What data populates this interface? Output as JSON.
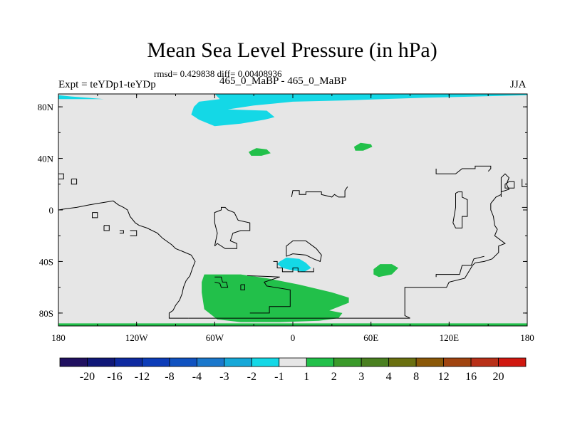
{
  "chart_data": {
    "type": "filled-contour map",
    "title": "Mean Sea Level Pressure (in hPa)",
    "stats_line": "rmsd= 0.429838 diff= 0.00408936",
    "left_label": "Expt = teYDp1-teYDp",
    "center_label": "465_0_MaBP - 465_0_MaBP",
    "right_label": "JJA",
    "x_axis": {
      "range": [
        -180,
        180
      ],
      "ticks": [
        {
          "value": -180,
          "label": "180"
        },
        {
          "value": -120,
          "label": "120W"
        },
        {
          "value": -60,
          "label": "60W"
        },
        {
          "value": 0,
          "label": "0"
        },
        {
          "value": 60,
          "label": "60E"
        },
        {
          "value": 120,
          "label": "120E"
        },
        {
          "value": 180,
          "label": "180"
        }
      ]
    },
    "y_axis": {
      "range": [
        -90,
        90
      ],
      "ticks": [
        {
          "value": 80,
          "label": "80N"
        },
        {
          "value": 40,
          "label": "40N"
        },
        {
          "value": 0,
          "label": "0"
        },
        {
          "value": -40,
          "label": "40S"
        },
        {
          "value": -80,
          "label": "80S"
        }
      ]
    },
    "colorbar": {
      "labels": [
        "-20",
        "-16",
        "-12",
        "-8",
        "-4",
        "-3",
        "-2",
        "-1",
        "1",
        "2",
        "3",
        "4",
        "8",
        "12",
        "16",
        "20"
      ],
      "colors": [
        "#201060",
        "#101878",
        "#0e2aa0",
        "#0c3cb8",
        "#1052c0",
        "#1a78cc",
        "#16a8d8",
        "#14d8e6",
        "#e6e6e6",
        "#22c04a",
        "#3a9a2a",
        "#4a8020",
        "#6a7010",
        "#8a5808",
        "#a04410",
        "#b83018",
        "#d01810"
      ]
    },
    "regions": [
      {
        "fill": "#14d8e6",
        "points": [
          [
            -180,
            90
          ],
          [
            -60,
            90
          ],
          [
            -56,
            86
          ],
          [
            -72,
            84
          ],
          [
            -76,
            80
          ],
          [
            -78,
            74
          ],
          [
            -72,
            70
          ],
          [
            -60,
            65
          ],
          [
            -40,
            67
          ],
          [
            -22,
            70
          ],
          [
            -14,
            72
          ],
          [
            -20,
            77
          ],
          [
            -50,
            78
          ],
          [
            -30,
            81
          ],
          [
            0,
            84
          ],
          [
            40,
            85
          ],
          [
            100,
            87
          ],
          [
            140,
            88
          ],
          [
            180,
            89
          ],
          [
            180,
            90
          ]
        ]
      },
      {
        "fill": "#14d8e6",
        "points": [
          [
            -180,
            86
          ],
          [
            -145,
            86
          ],
          [
            -170,
            88
          ],
          [
            -180,
            89
          ]
        ]
      },
      {
        "fill": "#22c04a",
        "points": [
          [
            -34,
            45
          ],
          [
            -28,
            48
          ],
          [
            -20,
            47
          ],
          [
            -17,
            44
          ],
          [
            -24,
            42
          ],
          [
            -32,
            42
          ]
        ]
      },
      {
        "fill": "#22c04a",
        "points": [
          [
            47,
            49
          ],
          [
            52,
            52
          ],
          [
            60,
            51
          ],
          [
            61,
            49
          ],
          [
            54,
            46
          ],
          [
            48,
            46
          ]
        ]
      },
      {
        "fill": "#14d8e6",
        "points": [
          [
            -10,
            -40
          ],
          [
            -5,
            -37
          ],
          [
            5,
            -38
          ],
          [
            10,
            -41
          ],
          [
            14,
            -45
          ],
          [
            9,
            -48
          ],
          [
            0,
            -47
          ],
          [
            -8,
            -45
          ],
          [
            -12,
            -42
          ]
        ]
      },
      {
        "fill": "#22c04a",
        "points": [
          [
            62,
            -46
          ],
          [
            67,
            -42
          ],
          [
            76,
            -42
          ],
          [
            81,
            -45
          ],
          [
            76,
            -50
          ],
          [
            66,
            -52
          ],
          [
            62,
            -50
          ]
        ]
      },
      {
        "fill": "#22c04a",
        "points": [
          [
            -68,
            -50
          ],
          [
            -40,
            -50
          ],
          [
            -20,
            -53
          ],
          [
            5,
            -58
          ],
          [
            30,
            -64
          ],
          [
            43,
            -68
          ],
          [
            43,
            -72
          ],
          [
            28,
            -78
          ],
          [
            38,
            -80
          ],
          [
            35,
            -84
          ],
          [
            20,
            -86
          ],
          [
            -10,
            -87
          ],
          [
            -40,
            -87
          ],
          [
            -58,
            -85
          ],
          [
            -68,
            -77
          ],
          [
            -70,
            -64
          ],
          [
            -70,
            -56
          ]
        ]
      },
      {
        "fill": "#22c04a",
        "points": [
          [
            -180,
            -88
          ],
          [
            180,
            -88
          ],
          [
            180,
            -90
          ],
          [
            -180,
            -90
          ]
        ]
      }
    ],
    "coastlines": [
      [
        [
          -80,
          -84
        ],
        [
          -95,
          -84
        ],
        [
          -95,
          -80
        ],
        [
          -92,
          -78
        ],
        [
          -90,
          -74
        ],
        [
          -87,
          -70
        ],
        [
          -85,
          -65
        ],
        [
          -84,
          -60
        ],
        [
          -82,
          -55
        ],
        [
          -79,
          -51
        ],
        [
          -77,
          -45
        ],
        [
          -75,
          -40
        ],
        [
          -78,
          -35
        ],
        [
          -85,
          -32
        ],
        [
          -90,
          -30
        ],
        [
          -93,
          -27
        ],
        [
          -100,
          -22
        ],
        [
          -104,
          -18
        ],
        [
          -112,
          -14
        ],
        [
          -118,
          -12
        ],
        [
          -121,
          -10
        ],
        [
          -125,
          -5
        ],
        [
          -127,
          0
        ],
        [
          -130,
          2
        ],
        [
          -134,
          4
        ],
        [
          -138,
          7
        ],
        [
          -144,
          6
        ],
        [
          -150,
          5
        ],
        [
          -156,
          4
        ],
        [
          -166,
          2
        ],
        [
          -174,
          1
        ],
        [
          -180,
          0
        ]
      ],
      [
        [
          -80,
          -84
        ],
        [
          90,
          -84
        ]
      ],
      [
        [
          90,
          -84
        ],
        [
          86,
          -82
        ],
        [
          86,
          -60
        ],
        [
          118,
          -60
        ],
        [
          120,
          -56
        ],
        [
          132,
          -53
        ],
        [
          135,
          -48
        ],
        [
          138,
          -43
        ],
        [
          140,
          -41
        ],
        [
          147,
          -40
        ],
        [
          153,
          -38
        ],
        [
          158,
          -33
        ],
        [
          158,
          -28
        ],
        [
          163,
          -26
        ],
        [
          155,
          -20
        ],
        [
          157,
          -15
        ],
        [
          155,
          -12
        ],
        [
          154,
          -5
        ],
        [
          152,
          0
        ],
        [
          152,
          5
        ],
        [
          156,
          10
        ],
        [
          160,
          12
        ],
        [
          160,
          14
        ],
        [
          166,
          16
        ],
        [
          164,
          20
        ],
        [
          166,
          25
        ],
        [
          163,
          28
        ],
        [
          160,
          25
        ],
        [
          160,
          10
        ]
      ],
      [
        [
          110,
          -52
        ],
        [
          110,
          -50
        ],
        [
          128,
          -50
        ],
        [
          130,
          -43
        ],
        [
          137,
          -43
        ],
        [
          139,
          -38
        ],
        [
          147,
          -36
        ]
      ],
      [
        [
          -33,
          -80
        ],
        [
          -18,
          -80
        ],
        [
          -18,
          -75
        ],
        [
          -2,
          -75
        ],
        [
          -2,
          -62
        ],
        [
          -20,
          -59
        ],
        [
          -22,
          -56
        ],
        [
          -10,
          -52
        ],
        [
          -35,
          -51
        ]
      ],
      [
        [
          -60,
          -52
        ],
        [
          -55,
          -52
        ],
        [
          -54,
          -56
        ],
        [
          -51,
          -56
        ],
        [
          -50,
          -60
        ],
        [
          -55,
          -60
        ],
        [
          -56,
          -57
        ],
        [
          -60,
          -56
        ]
      ],
      [
        [
          -40,
          -58
        ],
        [
          -37,
          -58
        ],
        [
          -37,
          -62
        ],
        [
          -40,
          -62
        ],
        [
          -40,
          -58
        ]
      ],
      [
        [
          -5,
          -36
        ],
        [
          -5,
          -28
        ],
        [
          0,
          -24
        ],
        [
          10,
          -24
        ],
        [
          18,
          -30
        ],
        [
          22,
          -35
        ],
        [
          21,
          -40
        ],
        [
          16,
          -38
        ],
        [
          10,
          -35
        ],
        [
          0,
          -34
        ],
        [
          -5,
          -36
        ]
      ],
      [
        [
          -60,
          -28
        ],
        [
          -58,
          -26
        ],
        [
          -52,
          -30
        ],
        [
          -43,
          -30
        ],
        [
          -43,
          -26
        ],
        [
          -48,
          -24
        ],
        [
          -46,
          -18
        ],
        [
          -40,
          -16
        ],
        [
          -33,
          -16
        ],
        [
          -33,
          -10
        ],
        [
          -42,
          -8
        ],
        [
          -45,
          -2
        ],
        [
          -50,
          0
        ],
        [
          -52,
          2
        ],
        [
          -55,
          2
        ],
        [
          -55,
          0
        ],
        [
          -60,
          -2
        ],
        [
          -60,
          -10
        ],
        [
          -58,
          -18
        ],
        [
          -60,
          -28
        ]
      ],
      [
        [
          -1,
          10
        ],
        [
          0,
          15
        ],
        [
          5,
          15
        ],
        [
          5,
          12
        ],
        [
          10,
          12
        ],
        [
          10,
          14
        ],
        [
          22,
          14
        ],
        [
          22,
          12
        ],
        [
          30,
          10
        ],
        [
          32,
          12
        ],
        [
          35,
          10
        ],
        [
          40,
          10
        ],
        [
          40,
          15
        ],
        [
          42,
          18
        ]
      ],
      [
        [
          110,
          32
        ],
        [
          110,
          28
        ],
        [
          125,
          28
        ],
        [
          130,
          32
        ],
        [
          140,
          32
        ],
        [
          140,
          34
        ],
        [
          152,
          34
        ],
        [
          152,
          32
        ],
        [
          150,
          30
        ]
      ],
      [
        [
          -180,
          28
        ],
        [
          -176,
          28
        ],
        [
          -176,
          24
        ],
        [
          -180,
          24
        ]
      ],
      [
        [
          -170,
          24
        ],
        [
          -166,
          24
        ],
        [
          -166,
          20
        ],
        [
          -170,
          20
        ],
        [
          -170,
          24
        ]
      ],
      [
        [
          -154,
          -2
        ],
        [
          -150,
          -2
        ],
        [
          -150,
          -6
        ],
        [
          -154,
          -6
        ],
        [
          -154,
          -2
        ]
      ],
      [
        [
          -145,
          -12
        ],
        [
          -141,
          -12
        ],
        [
          -141,
          -16
        ],
        [
          -145,
          -16
        ],
        [
          -145,
          -12
        ]
      ],
      [
        [
          -133,
          -16
        ],
        [
          -130,
          -16
        ],
        [
          -130,
          -18
        ],
        [
          -133,
          -18
        ]
      ],
      [
        [
          -125,
          -16
        ],
        [
          -120,
          -16
        ],
        [
          -120,
          -20
        ],
        [
          -125,
          -20
        ]
      ],
      [
        [
          127,
          14
        ],
        [
          125,
          13
        ],
        [
          125,
          2
        ],
        [
          123,
          -10
        ],
        [
          125,
          -14
        ],
        [
          130,
          -14
        ],
        [
          130,
          -5
        ],
        [
          134,
          -5
        ],
        [
          134,
          8
        ],
        [
          130,
          10
        ],
        [
          130,
          14
        ],
        [
          127,
          14
        ]
      ],
      [
        [
          163,
          20
        ],
        [
          166,
          22
        ],
        [
          170,
          22
        ],
        [
          170,
          17
        ],
        [
          163,
          17
        ],
        [
          163,
          20
        ]
      ],
      [
        [
          176,
          24
        ],
        [
          176,
          18
        ],
        [
          180,
          18
        ]
      ],
      [
        [
          176,
          2
        ],
        [
          180,
          2
        ]
      ],
      [
        [
          -15,
          -40
        ],
        [
          -12,
          -40
        ],
        [
          -12,
          -45
        ],
        [
          -8,
          -45
        ],
        [
          -8,
          -48
        ],
        [
          0,
          -48
        ],
        [
          0,
          -45
        ],
        [
          4,
          -45
        ],
        [
          4,
          -48
        ],
        [
          16,
          -48
        ],
        [
          16,
          -45
        ]
      ]
    ]
  }
}
